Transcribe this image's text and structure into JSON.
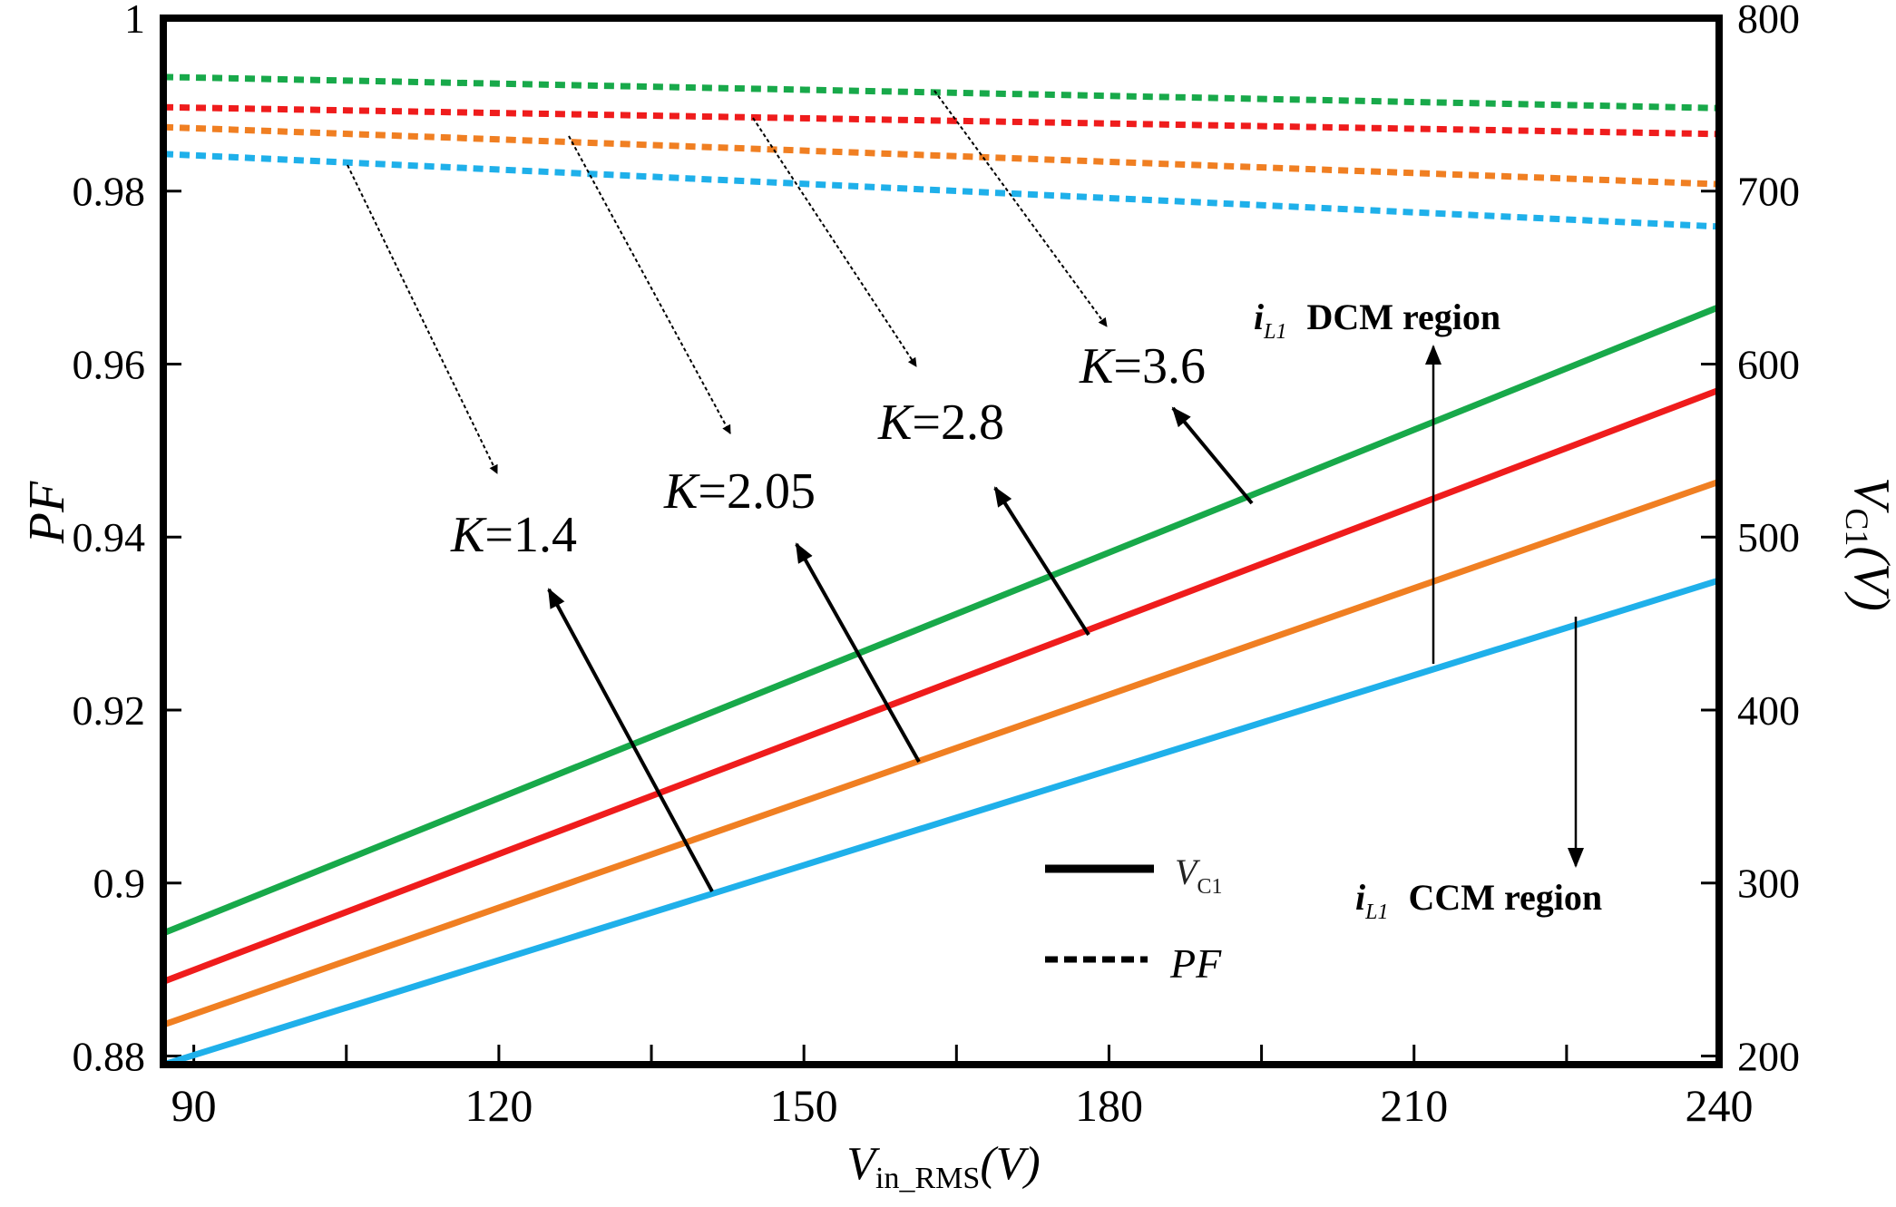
{
  "chart_data": {
    "type": "line",
    "x_label_main": "V",
    "x_label_sub": "in_RMS",
    "x_label_unit": "(V)",
    "y_left_label": "PF",
    "y_right_label_main": "V",
    "y_right_label_sub": "C1",
    "y_right_label_unit": "(V)",
    "x_range": [
      87,
      240
    ],
    "y_left_range": [
      0.879,
      1.0
    ],
    "y_right_range": [
      195,
      800
    ],
    "x_ticks": [
      90,
      120,
      150,
      180,
      210,
      240
    ],
    "x_tick_labels": [
      "90",
      "120",
      "150",
      "180",
      "210",
      "240"
    ],
    "x_minor_ticks": [
      105,
      135,
      165,
      195,
      225
    ],
    "y_left_ticks": [
      0.88,
      0.9,
      0.92,
      0.94,
      0.96,
      0.98,
      1.0
    ],
    "y_left_tick_labels": [
      "0.88",
      "0.9",
      "0.92",
      "0.94",
      "0.96",
      "0.98",
      "1"
    ],
    "y_right_ticks": [
      200,
      300,
      400,
      500,
      600,
      700,
      800
    ],
    "y_right_tick_labels": [
      "200",
      "300",
      "400",
      "500",
      "600",
      "700",
      "800"
    ],
    "series": [
      {
        "name": "K=1.4",
        "color": "#1fb0ea",
        "vc1": {
          "x": [
            87,
            240
          ],
          "y": [
            195,
            475
          ]
        },
        "pf": {
          "x": [
            87,
            240
          ],
          "y": [
            0.9843,
            0.9759
          ]
        }
      },
      {
        "name": "K=2.05",
        "color": "#f07f22",
        "vc1": {
          "x": [
            87,
            240
          ],
          "y": [
            218,
            532
          ]
        },
        "pf": {
          "x": [
            87,
            240
          ],
          "y": [
            0.9874,
            0.9808
          ]
        }
      },
      {
        "name": "K=2.8",
        "color": "#ef1c1c",
        "vc1": {
          "x": [
            87,
            240
          ],
          "y": [
            243,
            585
          ]
        },
        "pf": {
          "x": [
            87,
            240
          ],
          "y": [
            0.9897,
            0.9866
          ]
        }
      },
      {
        "name": "K=3.6",
        "color": "#18a94a",
        "vc1": {
          "x": [
            87,
            240
          ],
          "y": [
            271,
            633
          ]
        },
        "pf": {
          "x": [
            87,
            240
          ],
          "y": [
            0.9932,
            0.9896
          ]
        }
      }
    ],
    "annotations": [
      {
        "k": "K",
        "v": "=1.4"
      },
      {
        "k": "K",
        "v": "=2.05"
      },
      {
        "k": "K",
        "v": "=2.8"
      },
      {
        "k": "K",
        "v": "=3.6"
      }
    ],
    "region_labels": [
      {
        "i": "i",
        "sub": "L1",
        "text": "DCM region"
      },
      {
        "i": "i",
        "sub": "L1",
        "text": "CCM region"
      }
    ],
    "legend": [
      {
        "style": "solid",
        "label_main": "V",
        "label_sub": "C1"
      },
      {
        "style": "dashed",
        "label_main": "PF",
        "label_sub": ""
      }
    ]
  }
}
